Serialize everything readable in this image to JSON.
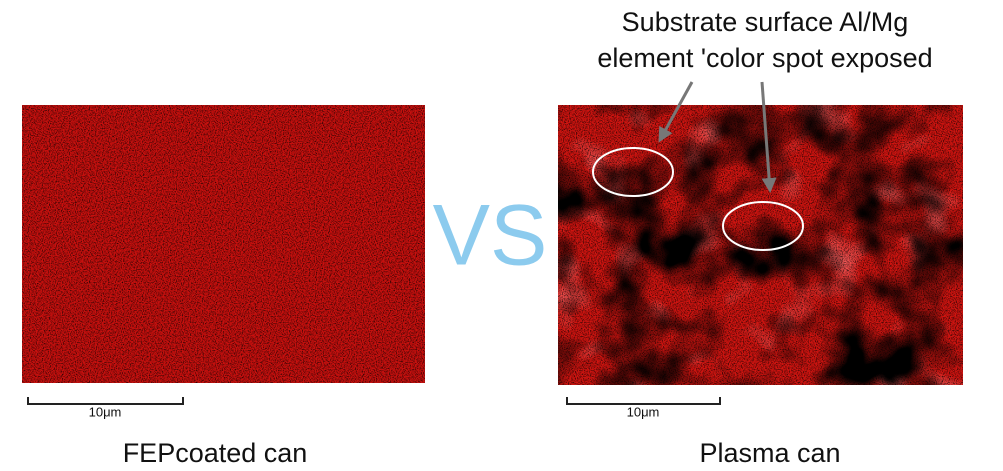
{
  "annotation": {
    "lines": [
      "Substrate surface Al/Mg",
      "element 'color spot exposed"
    ]
  },
  "separator": "VS",
  "left_panel": {
    "scale_label": "10μm",
    "caption": "FEPcoated can"
  },
  "right_panel": {
    "scale_label": "10μm",
    "caption": "Plasma can"
  }
}
